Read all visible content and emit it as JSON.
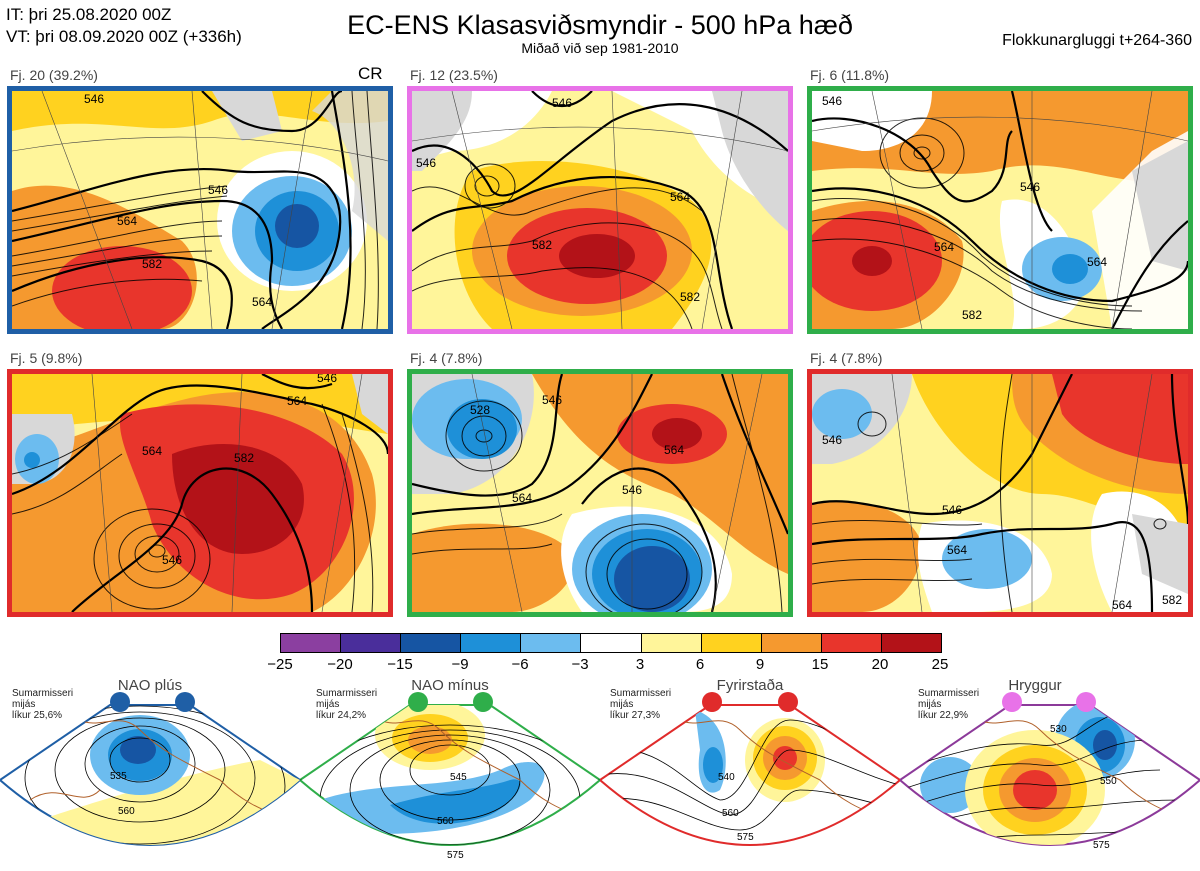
{
  "header": {
    "it_line": "IT: þri 25.08.2020 00Z",
    "vt_line": "VT: þri 08.09.2020 00Z  (+336h)",
    "title": "EC-ENS Klasasviðsmyndir - 500 hPa hæð",
    "subtitle": "Miðað við sep 1981-2010",
    "window": "Flokkunargluggi t+264-360"
  },
  "panels": [
    {
      "label": "Fj. 20 (39.2%)",
      "frame_color": "#1f5fa6",
      "tag": "CR"
    },
    {
      "label": "Fj. 12 (23.5%)",
      "frame_color": "#e872e8",
      "tag": ""
    },
    {
      "label": "Fj. 6 (11.8%)",
      "frame_color": "#2fae4a",
      "tag": ""
    },
    {
      "label": "Fj. 5 (9.8%)",
      "frame_color": "#e02b2b",
      "tag": ""
    },
    {
      "label": "Fj. 4 (7.8%)",
      "frame_color": "#2fae4a",
      "tag": ""
    },
    {
      "label": "Fj. 4 (7.8%)",
      "frame_color": "#e02b2b",
      "tag": ""
    }
  ],
  "contour_labels": {
    "p1": [
      "546",
      "564",
      "582",
      "564",
      "546"
    ],
    "p2": [
      "546",
      "564",
      "582",
      "582",
      "546"
    ],
    "p3": [
      "546",
      "546",
      "564",
      "582",
      "564"
    ],
    "p4": [
      "546",
      "564",
      "582",
      "546",
      "564"
    ],
    "p5": [
      "528",
      "546",
      "564",
      "546",
      "564"
    ],
    "p6": [
      "546",
      "564",
      "546",
      "564",
      "582"
    ]
  },
  "colorbar": {
    "ticks": [
      "−25",
      "−20",
      "−15",
      "−9",
      "−6",
      "−3",
      "3",
      "6",
      "9",
      "15",
      "20",
      "25"
    ],
    "colors": [
      "#8b3fa0",
      "#4a2e9b",
      "#1655a3",
      "#1e90d8",
      "#6cbcef",
      "#ffffff",
      "#fff59a",
      "#ffd21f",
      "#f5992f",
      "#e8352c",
      "#b31218"
    ]
  },
  "regimes": [
    {
      "name": "NAO plús",
      "note": [
        "Sumarmisseri",
        "mijás",
        "líkur 25,6%"
      ],
      "color": "#1f5fa6",
      "dot": "#1f5fa6",
      "labels": [
        "535",
        "560"
      ]
    },
    {
      "name": "NAO mínus",
      "note": [
        "Sumarmisseri",
        "mijás",
        "líkur 24,2%"
      ],
      "color": "#2fae4a",
      "dot": "#2fae4a",
      "labels": [
        "545",
        "560",
        "575"
      ]
    },
    {
      "name": "Fyrirstaða",
      "note": [
        "Sumarmisseri",
        "mijás",
        "líkur 27,3%"
      ],
      "color": "#e02b2b",
      "dot": "#e02b2b",
      "labels": [
        "540",
        "560",
        "575"
      ]
    },
    {
      "name": "Hryggur",
      "note": [
        "Sumarmisseri",
        "mijás",
        "líkur 22,9%"
      ],
      "color": "#8c3a9a",
      "dot": "#e872e8",
      "labels": [
        "530",
        "550",
        "575"
      ]
    }
  ]
}
